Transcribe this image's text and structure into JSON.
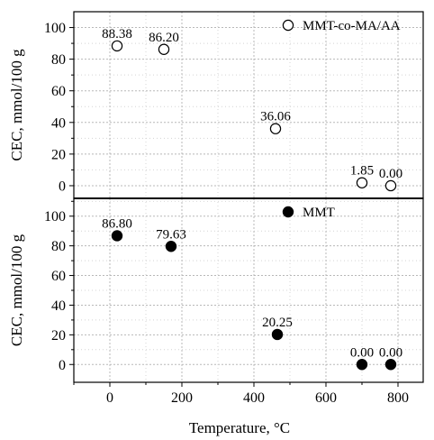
{
  "chart_data": [
    {
      "type": "scatter",
      "panel": "top",
      "ylabel": "CEC, mmol/100 g",
      "ylim": [
        -8,
        110
      ],
      "yticks": [
        0,
        20,
        40,
        60,
        80,
        100
      ],
      "grid": true,
      "legend": {
        "position": "top-right",
        "marker": "open-circle"
      },
      "series": [
        {
          "name": "MMT-co-MA/AA",
          "marker": "open-circle",
          "x": [
            20,
            150,
            460,
            700,
            780
          ],
          "y": [
            88.38,
            86.2,
            36.06,
            1.85,
            0.0
          ],
          "labels": [
            "88.38",
            "86.20",
            "36.06",
            "1.85",
            "0.00"
          ]
        }
      ]
    },
    {
      "type": "scatter",
      "panel": "bottom",
      "xlabel": "Temperature, °C",
      "ylabel": "CEC, mmol/100 g",
      "xlim": [
        -100,
        870
      ],
      "xticks": [
        0,
        200,
        400,
        600,
        800
      ],
      "ylim": [
        -12,
        112
      ],
      "yticks": [
        0,
        20,
        40,
        60,
        80,
        100
      ],
      "grid": true,
      "legend": {
        "position": "top-right",
        "marker": "filled-circle"
      },
      "series": [
        {
          "name": "MMT",
          "marker": "filled-circle",
          "x": [
            20,
            170,
            465,
            700,
            780
          ],
          "y": [
            86.8,
            79.63,
            20.25,
            0.0,
            0.0
          ],
          "labels": [
            "86.80",
            "79.63",
            "20.25",
            "0.00",
            "0.00"
          ]
        }
      ]
    }
  ]
}
